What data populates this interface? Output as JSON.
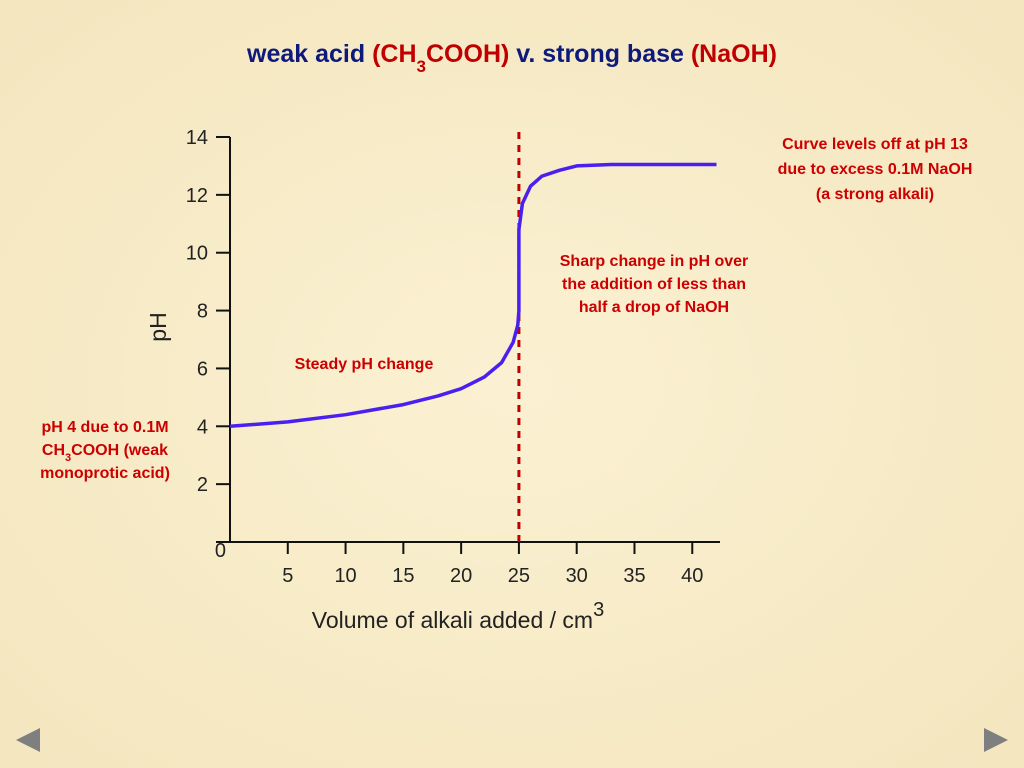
{
  "chart_data": {
    "type": "line",
    "title_parts": [
      {
        "text": "weak acid ",
        "color": "#0d1a7c"
      },
      {
        "text": "(CH",
        "color": "#c00000"
      },
      {
        "text": "3",
        "color": "#c00000",
        "subscript": true
      },
      {
        "text": "COOH)",
        "color": "#c00000"
      },
      {
        "text": " v. strong base ",
        "color": "#0d1a7c"
      },
      {
        "text": "(NaOH)",
        "color": "#c00000"
      }
    ],
    "x_label": "Volume of alkali added / cm",
    "x_label_sup": "3",
    "y_label": "pH",
    "xlim": [
      0,
      42.4
    ],
    "ylim": [
      0,
      14
    ],
    "xticks": [
      5,
      10,
      15,
      20,
      25,
      30,
      35,
      40
    ],
    "yticks": [
      0,
      2,
      4,
      6,
      8,
      10,
      12,
      14
    ],
    "vline_x": 25,
    "vline_color": "#c00000",
    "series": [
      {
        "name": "pH",
        "color": "#4a1ff0",
        "x": [
          0,
          5,
          10,
          15,
          18,
          20,
          22,
          23.5,
          24.5,
          24.9,
          25,
          25,
          25.3,
          26,
          27,
          28.5,
          30,
          33,
          37,
          42.1
        ],
        "values": [
          4.0,
          4.15,
          4.4,
          4.75,
          5.05,
          5.3,
          5.7,
          6.2,
          6.9,
          7.5,
          8.0,
          10.8,
          11.7,
          12.3,
          12.65,
          12.85,
          13.0,
          13.05,
          13.05,
          13.05
        ]
      }
    ],
    "annotations": [
      {
        "lines": [
          [
            {
              "text": "Curve levels off at pH 13"
            }
          ],
          [
            {
              "text": "due to excess 0.1M NaOH"
            }
          ],
          [
            {
              "text": "(a strong alkali)"
            }
          ]
        ]
      },
      {
        "lines": [
          [
            {
              "text": "Sharp change in pH over"
            }
          ],
          [
            {
              "text": "the addition of less than"
            }
          ],
          [
            {
              "text": "half a drop of NaOH"
            }
          ]
        ]
      },
      {
        "lines": [
          [
            {
              "text": "Steady pH change"
            }
          ]
        ]
      },
      {
        "lines": [
          [
            {
              "text": "pH 4 due to 0.1M"
            }
          ],
          [
            {
              "text": "CH"
            },
            {
              "text": "3",
              "subscript": true
            },
            {
              "text": "COOH (weak"
            }
          ],
          [
            {
              "text": "monoprotic acid)"
            }
          ]
        ]
      }
    ]
  }
}
